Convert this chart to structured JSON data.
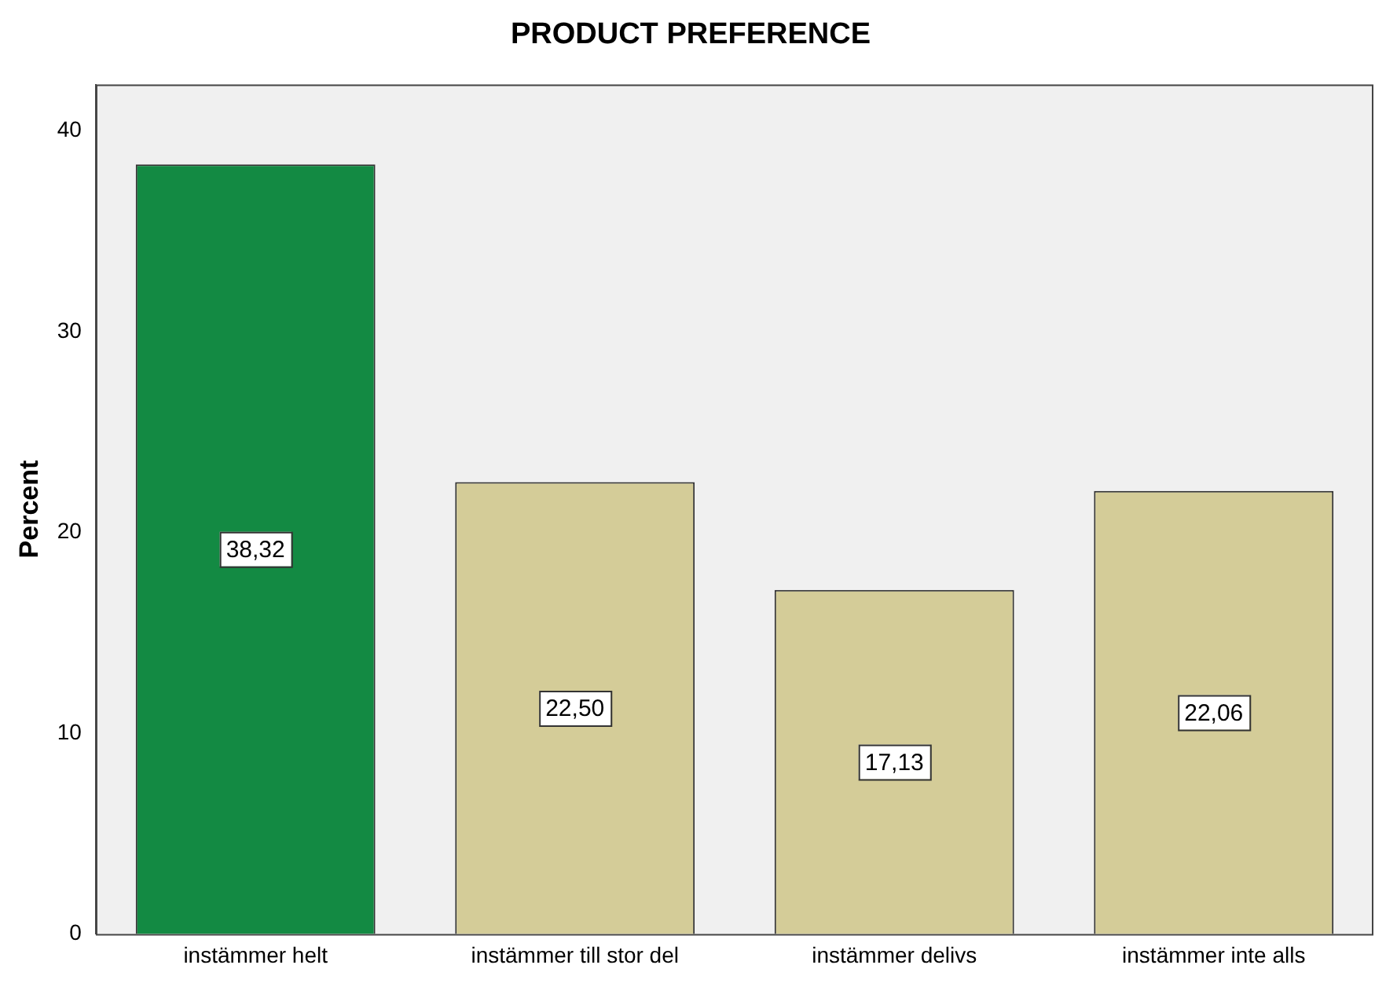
{
  "chart_data": {
    "type": "bar",
    "title": "PRODUCT PREFERENCE",
    "ylabel": "Percent",
    "categories": [
      "instämmer helt",
      "instämmer till stor del",
      "instämmer delivs",
      "instämmer inte alls"
    ],
    "values": [
      38.32,
      22.5,
      17.13,
      22.06
    ],
    "colors": [
      "#138a43",
      "#d4cc98",
      "#d4cc98",
      "#d4cc98"
    ],
    "value_labels": [
      "38,32",
      "22,50",
      "17,13",
      "22,06"
    ],
    "ylim": [
      0,
      42.3
    ],
    "yticks": [
      0,
      10,
      20,
      30,
      40
    ]
  }
}
